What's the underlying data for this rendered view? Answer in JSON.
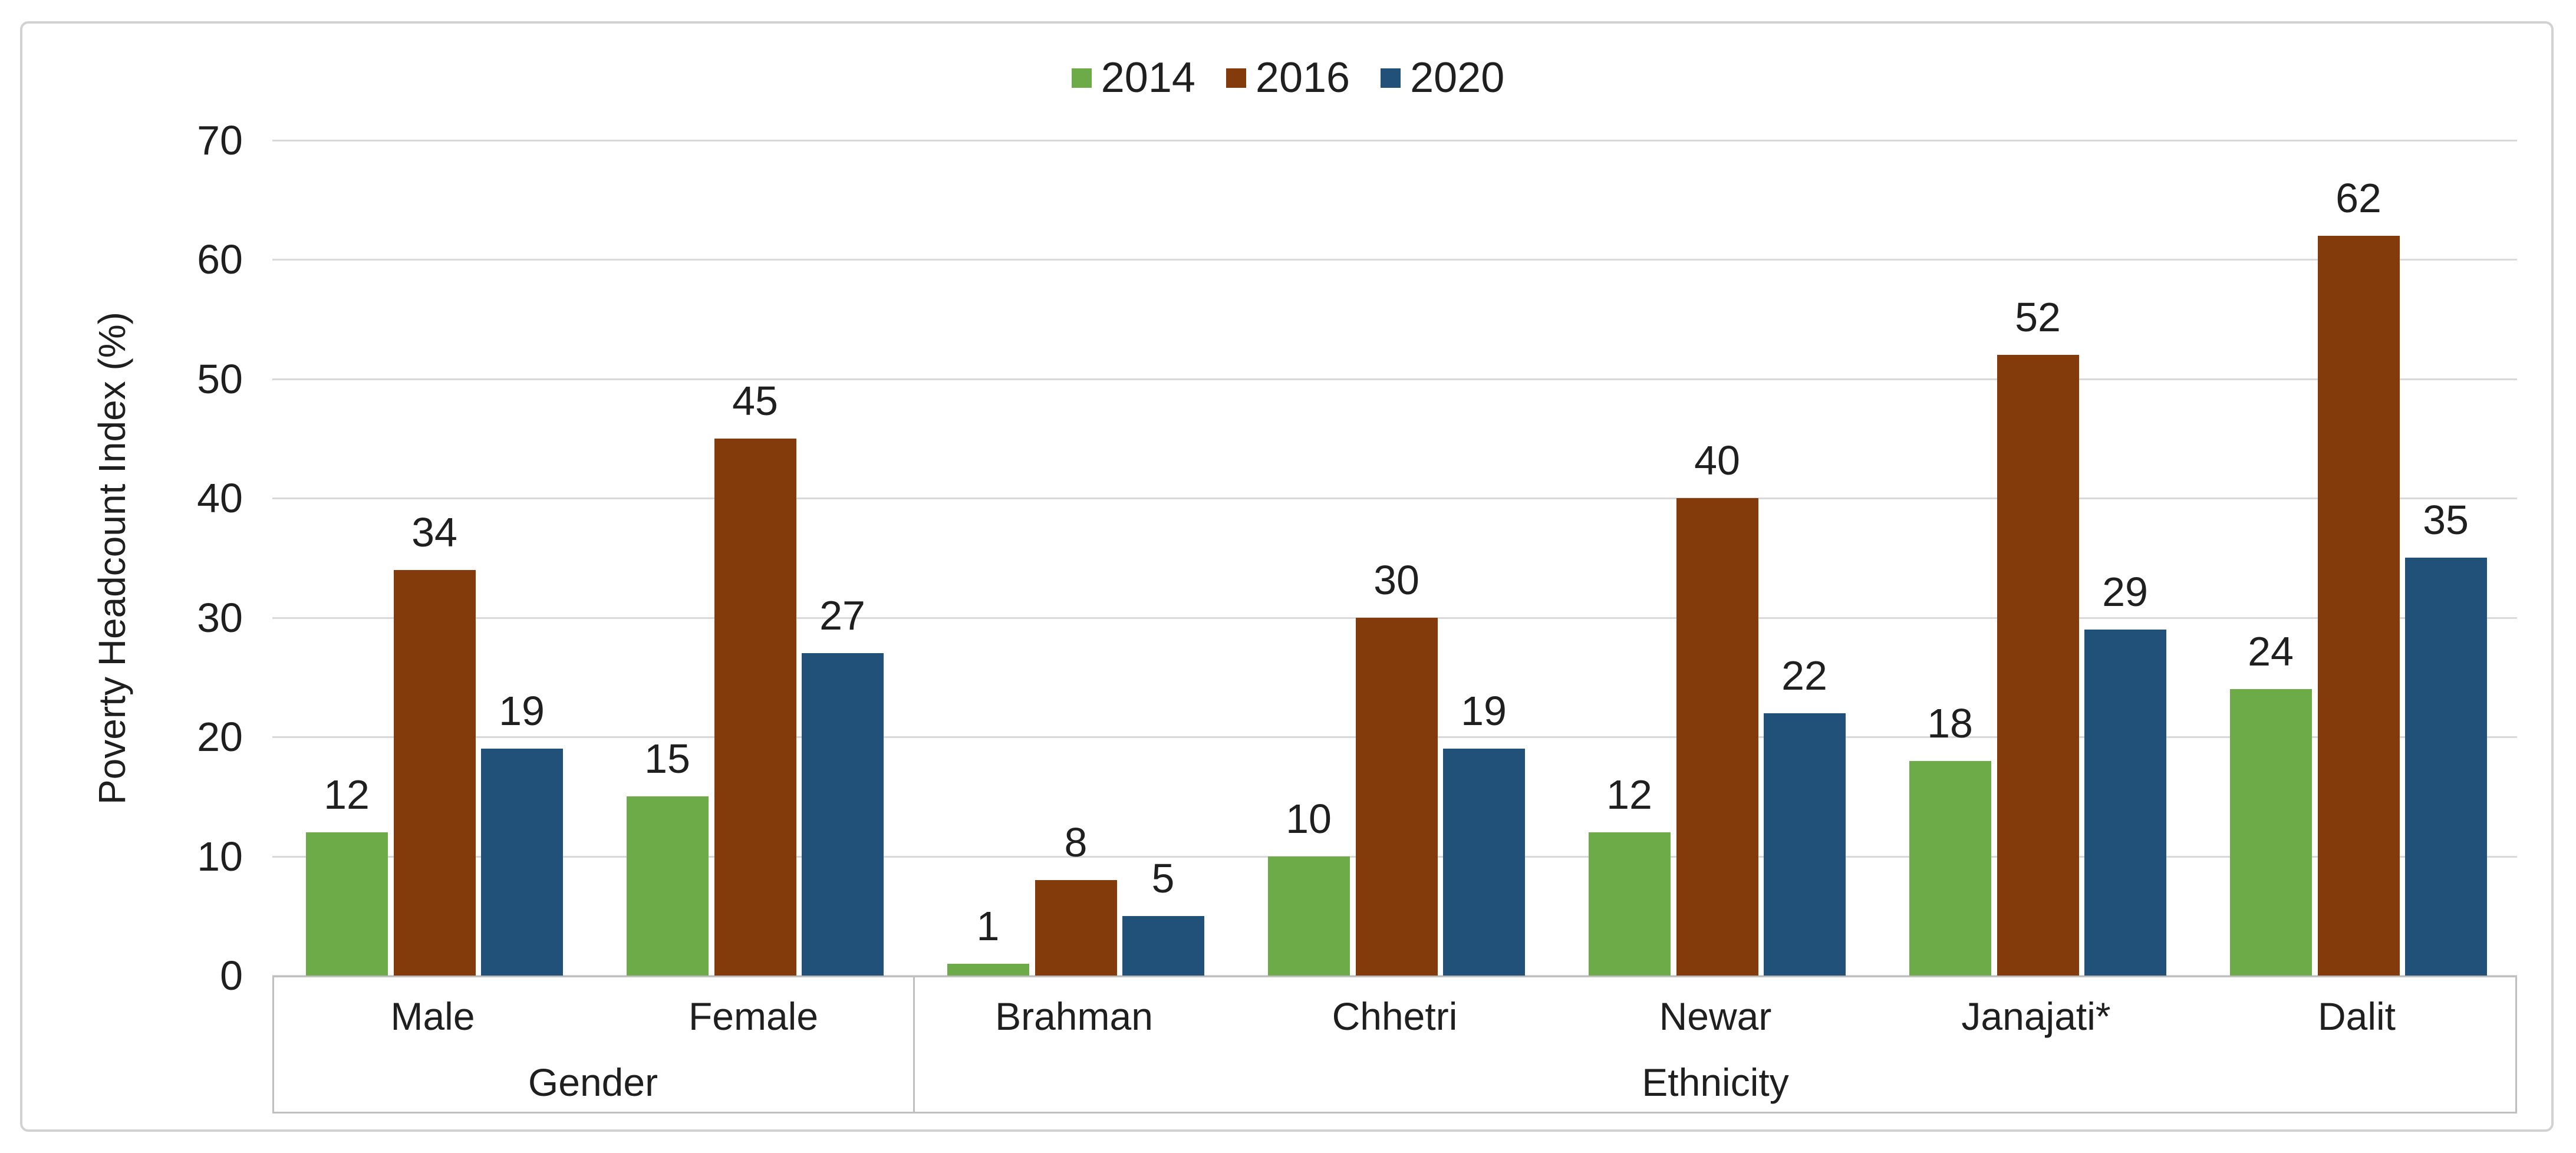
{
  "chart_data": {
    "type": "bar",
    "title": "",
    "ylabel": "Poverty Headcount Index (%)",
    "xlabel": "",
    "ylim": [
      0,
      70
    ],
    "yticks": [
      0,
      10,
      20,
      30,
      40,
      50,
      60,
      70
    ],
    "grid": true,
    "legend_position": "top-center",
    "categories": [
      "Male",
      "Female",
      "Brahman",
      "Chhetri",
      "Newar",
      "Janajati*",
      "Dalit"
    ],
    "category_groups": [
      {
        "label": "Gender",
        "span": 2
      },
      {
        "label": "Ethnicity",
        "span": 5
      }
    ],
    "series": [
      {
        "name": "2014",
        "color": "#6CAB47",
        "values": [
          12,
          15,
          1,
          10,
          12,
          18,
          24
        ]
      },
      {
        "name": "2016",
        "color": "#843B0C",
        "values": [
          34,
          45,
          8,
          30,
          40,
          52,
          62
        ]
      },
      {
        "name": "2020",
        "color": "#215078",
        "values": [
          19,
          27,
          5,
          19,
          22,
          29,
          35
        ]
      }
    ],
    "data_labels_shown": true,
    "colors": {
      "gridline": "#d9d9d9",
      "axis_box": "#bfbfbf",
      "frame_border": "#d2d2d2",
      "text": "#1f1f1f",
      "background": "#ffffff"
    }
  }
}
